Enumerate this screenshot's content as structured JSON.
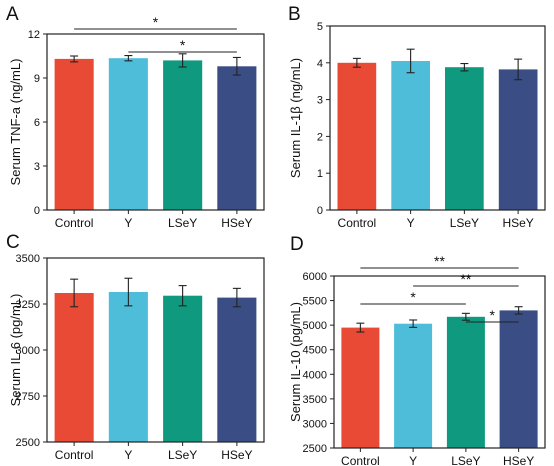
{
  "chart_data": [
    {
      "type": "bar",
      "panel": "A",
      "categories": [
        "Control",
        "Y",
        "LSeY",
        "HSeY"
      ],
      "values": [
        10.3,
        10.35,
        10.2,
        9.8
      ],
      "errors": [
        0.2,
        0.18,
        0.45,
        0.6
      ],
      "colors": [
        "#e84a35",
        "#4dbdd9",
        "#0f9a7f",
        "#3a4e85"
      ],
      "ylabel": "Serum TNF-a (ng/mL)",
      "xlabel": "",
      "ylim": [
        0,
        12
      ],
      "yticks": [
        0,
        3,
        6,
        9,
        12
      ],
      "grid": false,
      "significance": [
        {
          "from": "Control",
          "to": "HSeY",
          "label": "*"
        },
        {
          "from": "Y",
          "to": "HSeY",
          "label": "*"
        }
      ]
    },
    {
      "type": "bar",
      "panel": "B",
      "categories": [
        "Control",
        "Y",
        "LSeY",
        "HSeY"
      ],
      "values": [
        4.0,
        4.05,
        3.88,
        3.82
      ],
      "errors": [
        0.12,
        0.32,
        0.1,
        0.28
      ],
      "colors": [
        "#e84a35",
        "#4dbdd9",
        "#0f9a7f",
        "#3a4e85"
      ],
      "ylabel": "Serum IL-1β (ng/mL)",
      "xlabel": "",
      "ylim": [
        0,
        5
      ],
      "yticks": [
        0,
        1,
        2,
        3,
        4,
        5
      ],
      "grid": false,
      "significance": []
    },
    {
      "type": "bar",
      "panel": "C",
      "categories": [
        "Control",
        "Y",
        "LSeY",
        "HSeY"
      ],
      "values": [
        3310,
        3315,
        3295,
        3285
      ],
      "errors": [
        75,
        75,
        55,
        50
      ],
      "colors": [
        "#e84a35",
        "#4dbdd9",
        "#0f9a7f",
        "#3a4e85"
      ],
      "ylabel": "Serum IL-6 (pg/mL)",
      "xlabel": "",
      "ylim": [
        2500,
        3500
      ],
      "yticks": [
        2500,
        2750,
        3000,
        3250,
        3500
      ],
      "grid": false,
      "significance": []
    },
    {
      "type": "bar",
      "panel": "D",
      "categories": [
        "Control",
        "Y",
        "LSeY",
        "HSeY"
      ],
      "values": [
        4950,
        5030,
        5170,
        5300
      ],
      "errors": [
        90,
        75,
        70,
        75
      ],
      "colors": [
        "#e84a35",
        "#4dbdd9",
        "#0f9a7f",
        "#3a4e85"
      ],
      "ylabel": "Serum IL-10 (pg/mL)",
      "xlabel": "",
      "ylim": [
        2500,
        6000
      ],
      "yticks": [
        2500,
        3000,
        3500,
        4000,
        4500,
        5000,
        5500,
        6000
      ],
      "grid": false,
      "significance": [
        {
          "from": "Control",
          "to": "HSeY",
          "label": "**"
        },
        {
          "from": "Y",
          "to": "HSeY",
          "label": "**"
        },
        {
          "from": "Control",
          "to": "LSeY",
          "label": "*"
        },
        {
          "from": "LSeY",
          "to": "HSeY",
          "label": "*"
        }
      ]
    }
  ]
}
